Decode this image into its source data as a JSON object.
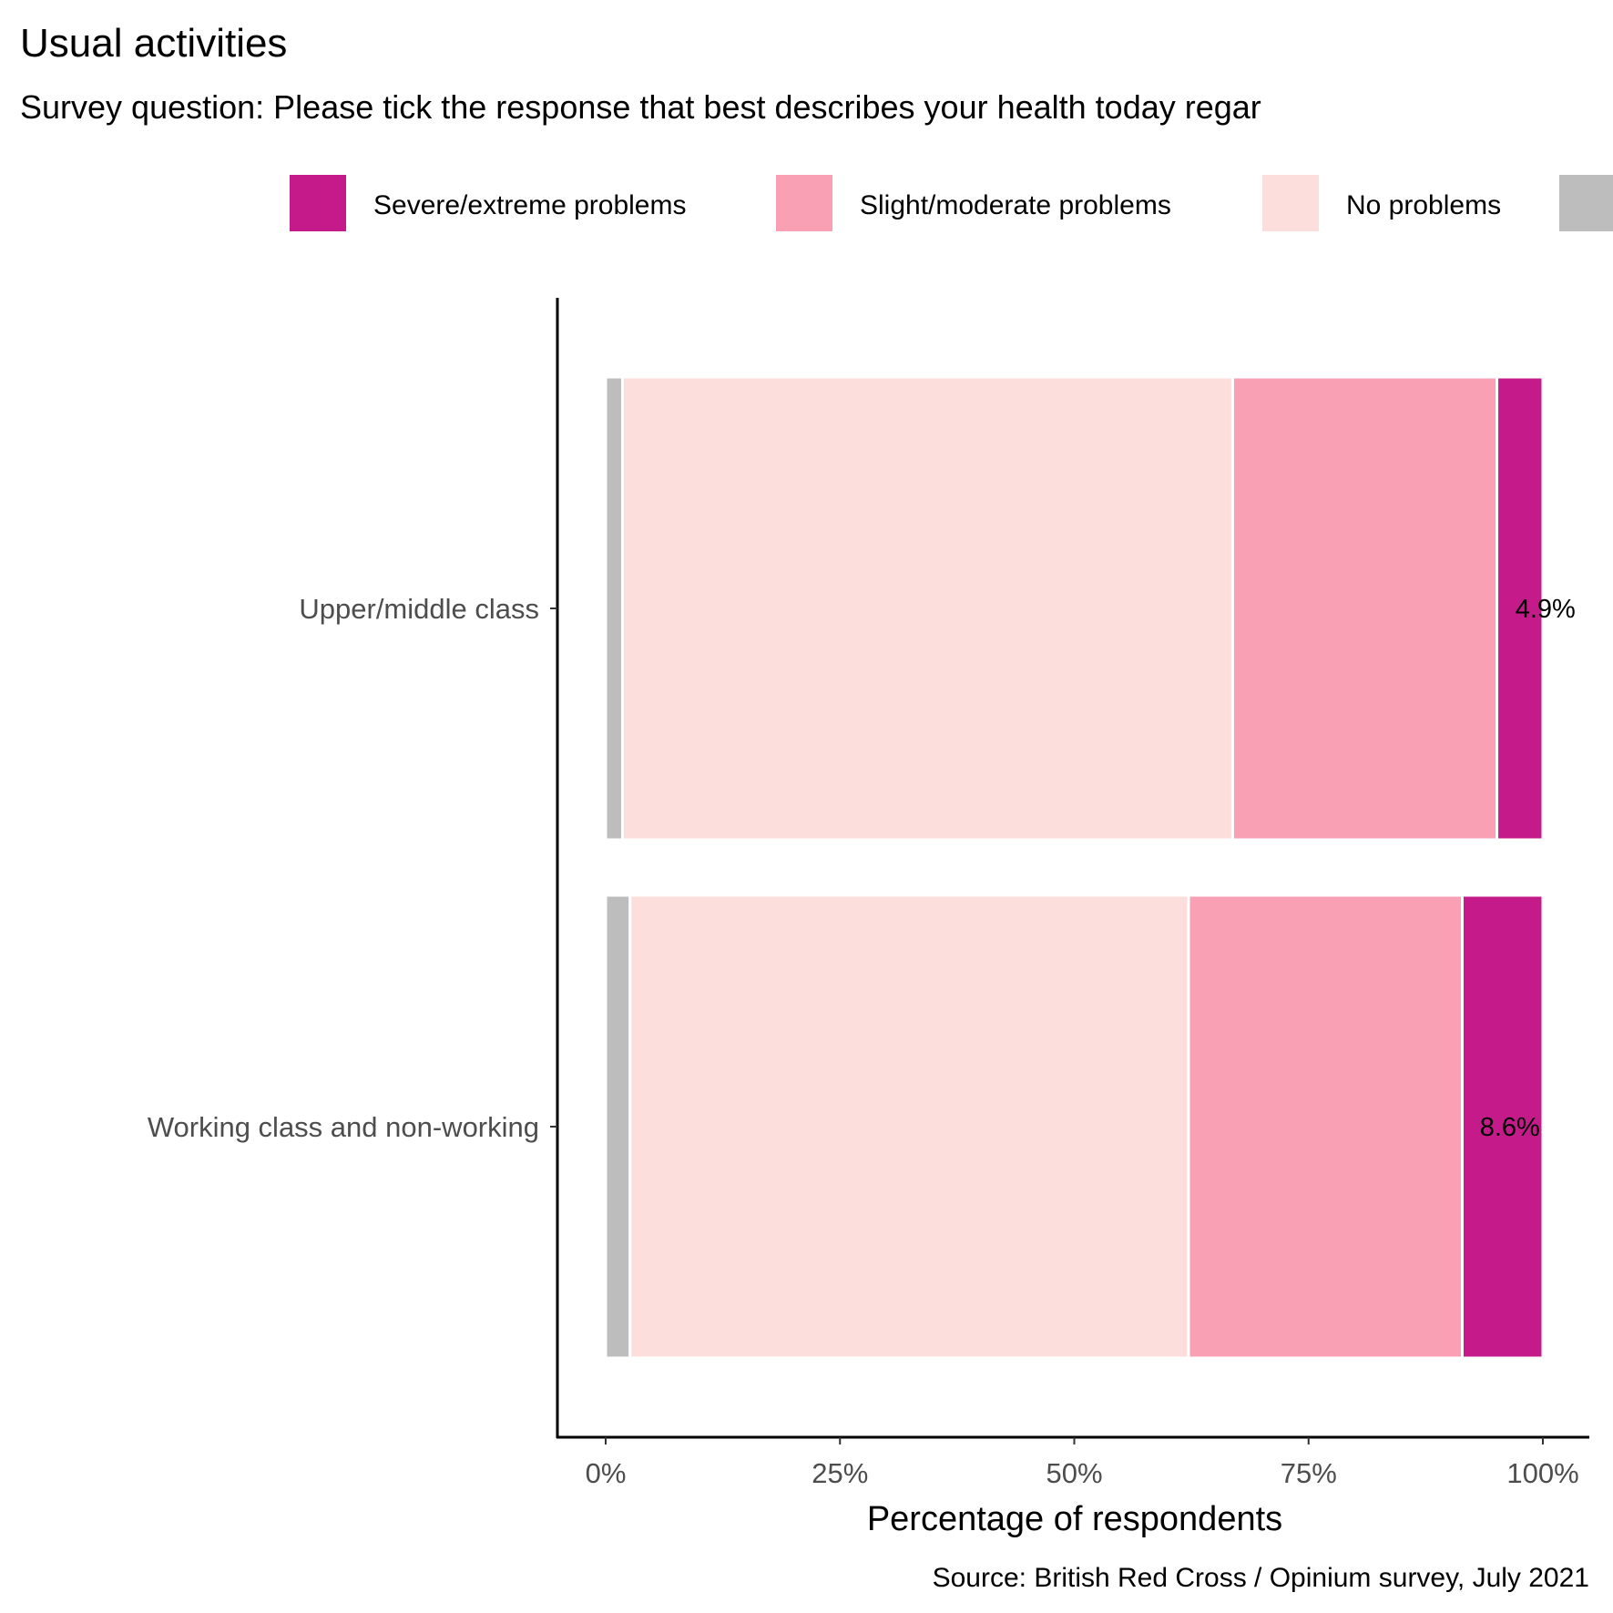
{
  "chart_data": {
    "type": "bar",
    "orientation": "horizontal",
    "stacked": true,
    "title": "Usual activities",
    "subtitle": "Survey question: Please tick the response that best describes your health today regar",
    "xlabel": "Percentage of respondents",
    "ylabel": "",
    "caption": "Source: British Red Cross / Opinium survey, July 2021",
    "xlim": [
      0,
      100
    ],
    "x_ticks": [
      "0%",
      "25%",
      "50%",
      "75%",
      "100%"
    ],
    "x_tick_values": [
      0,
      25,
      50,
      75,
      100
    ],
    "grid": false,
    "legend_position": "top",
    "categories": [
      "Upper/middle class",
      "Working class and non-working"
    ],
    "series": [
      {
        "name": "",
        "color": "#bdbdbd",
        "values": [
          1.8,
          2.6
        ]
      },
      {
        "name": "No problems",
        "color": "#fcdedc",
        "values": [
          65.1,
          59.6
        ]
      },
      {
        "name": "Slight/moderate problems",
        "color": "#f9a0b5",
        "values": [
          28.2,
          29.2
        ]
      },
      {
        "name": "Severe/extreme problems",
        "color": "#c51b8a",
        "values": [
          4.9,
          8.6
        ]
      }
    ],
    "legend": [
      {
        "label": "Severe/extreme problems",
        "color": "#c51b8a"
      },
      {
        "label": "Slight/moderate problems",
        "color": "#f9a0b5"
      },
      {
        "label": "No problems",
        "color": "#fcdedc"
      },
      {
        "label": "",
        "color": "#bdbdbd"
      }
    ],
    "data_labels": [
      "4.9%",
      "8.6%"
    ]
  }
}
